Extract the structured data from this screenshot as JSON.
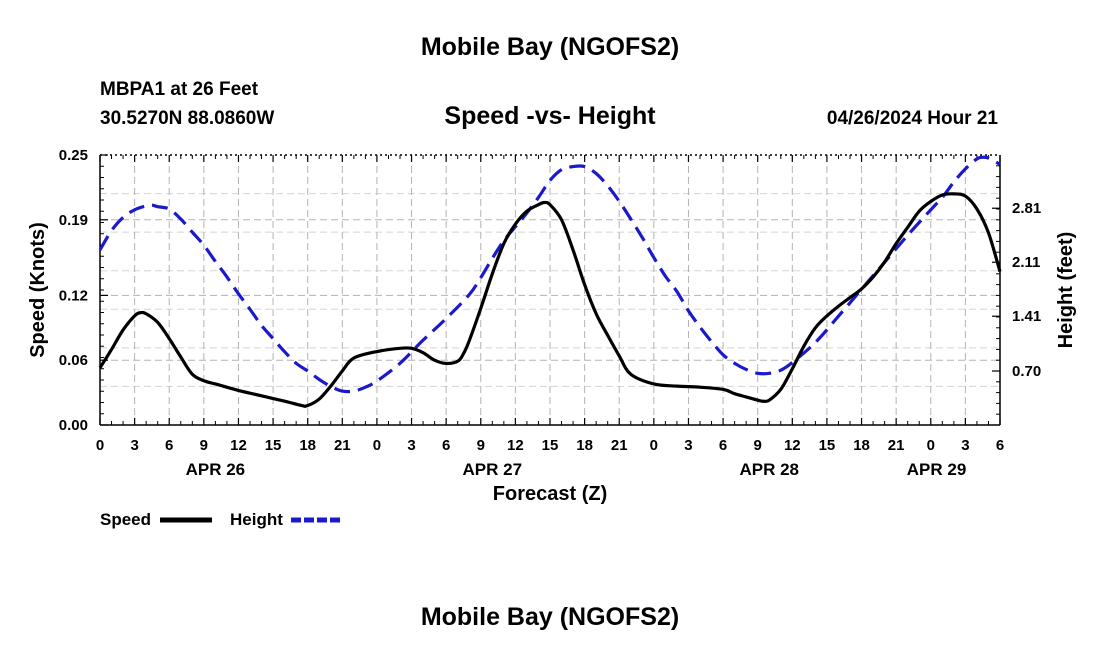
{
  "page_title": "Mobile Bay (NGOFS2)",
  "footer_title": "Mobile Bay (NGOFS2)",
  "station": {
    "name": "MBPA1 at 26 Feet",
    "coords": "30.5270N  88.0860W"
  },
  "timestamp": "04/26/2024 Hour 21",
  "colors": {
    "speed": "#000000",
    "height": "#1a1acc",
    "grid": "#b3b3b3"
  },
  "chart_data": {
    "type": "line",
    "title": "Speed -vs- Height",
    "xlabel": "Forecast (Z)",
    "ylabel_left": "Speed (Knots)",
    "ylabel_right": "Height (feet)",
    "x_unit": "hours since APR 26 00Z",
    "x_range": [
      0,
      78
    ],
    "x_tick_values": [
      0,
      3,
      6,
      9,
      12,
      15,
      18,
      21,
      24,
      27,
      30,
      33,
      36,
      39,
      42,
      45,
      48,
      51,
      54,
      57,
      60,
      63,
      66,
      69,
      72,
      75,
      78
    ],
    "x_tick_labels": [
      "0",
      "3",
      "6",
      "9",
      "12",
      "15",
      "18",
      "21",
      "0",
      "3",
      "6",
      "9",
      "12",
      "15",
      "18",
      "21",
      "0",
      "3",
      "6",
      "9",
      "12",
      "15",
      "18",
      "21",
      "0",
      "3",
      "6"
    ],
    "date_labels": [
      {
        "label": "APR 26",
        "x": 10
      },
      {
        "label": "APR 27",
        "x": 34
      },
      {
        "label": "APR 28",
        "x": 58
      },
      {
        "label": "APR 29",
        "x": 72.5
      }
    ],
    "y_left": {
      "range": [
        0,
        0.25
      ],
      "ticks": [
        0.0,
        0.06,
        0.12,
        0.19,
        0.25
      ],
      "tick_labels": [
        "0.00",
        "0.06",
        "0.12",
        "0.19",
        "0.25"
      ]
    },
    "y_right": {
      "range": [
        0.0,
        3.5
      ],
      "ticks": [
        0.7,
        1.41,
        2.11,
        2.81
      ],
      "tick_labels": [
        "0.70",
        "1.41",
        "2.11",
        "2.81"
      ]
    },
    "series": [
      {
        "name": "Speed",
        "axis": "left",
        "style": "solid",
        "x": [
          0,
          1,
          2,
          3,
          3.5,
          4,
          5,
          6,
          7,
          8,
          9,
          10,
          12,
          14,
          16,
          17.5,
          18,
          19,
          20,
          21,
          22,
          24,
          26,
          27,
          28,
          29,
          30,
          31,
          31.5,
          32,
          33,
          34,
          35,
          36,
          37,
          38,
          38.5,
          39,
          40,
          41,
          42,
          43,
          44,
          45,
          46,
          48,
          50,
          52,
          54,
          55,
          56,
          57,
          57.5,
          58,
          59,
          60,
          61,
          62,
          63,
          64,
          65,
          66,
          67,
          68,
          69,
          70,
          71,
          72,
          73,
          74,
          75,
          76,
          77,
          78
        ],
        "values": [
          0.053,
          0.07,
          0.088,
          0.101,
          0.104,
          0.103,
          0.095,
          0.08,
          0.063,
          0.047,
          0.041,
          0.038,
          0.032,
          0.027,
          0.022,
          0.018,
          0.018,
          0.024,
          0.036,
          0.05,
          0.062,
          0.068,
          0.071,
          0.071,
          0.067,
          0.06,
          0.057,
          0.059,
          0.066,
          0.078,
          0.108,
          0.14,
          0.168,
          0.186,
          0.198,
          0.204,
          0.206,
          0.204,
          0.19,
          0.162,
          0.13,
          0.103,
          0.083,
          0.064,
          0.047,
          0.038,
          0.036,
          0.035,
          0.033,
          0.029,
          0.026,
          0.023,
          0.022,
          0.023,
          0.033,
          0.052,
          0.073,
          0.09,
          0.101,
          0.11,
          0.118,
          0.126,
          0.137,
          0.151,
          0.168,
          0.183,
          0.198,
          0.207,
          0.213,
          0.214,
          0.212,
          0.2,
          0.178,
          0.142
        ]
      },
      {
        "name": "Height",
        "axis": "right",
        "style": "dashed",
        "x": [
          0,
          1,
          2,
          3,
          4,
          4.5,
          5,
          6,
          7,
          8,
          9,
          10,
          11,
          12,
          13,
          14,
          15,
          16,
          17,
          18,
          19,
          20,
          21,
          22,
          23,
          24,
          26,
          28,
          30,
          32,
          33,
          34,
          35,
          36,
          37,
          38,
          39,
          40,
          41,
          42,
          43,
          44,
          45,
          46,
          47,
          48,
          49,
          50,
          51,
          52,
          53,
          54,
          55,
          56,
          57,
          58,
          59,
          60,
          62,
          64,
          66,
          68,
          70,
          72,
          73,
          74,
          75,
          76,
          76.5,
          77,
          78
        ],
        "values": [
          2.27,
          2.52,
          2.69,
          2.79,
          2.84,
          2.85,
          2.83,
          2.8,
          2.67,
          2.5,
          2.33,
          2.12,
          1.92,
          1.7,
          1.5,
          1.29,
          1.12,
          0.95,
          0.8,
          0.7,
          0.59,
          0.5,
          0.44,
          0.44,
          0.49,
          0.57,
          0.8,
          1.1,
          1.38,
          1.69,
          1.91,
          2.16,
          2.39,
          2.57,
          2.75,
          2.95,
          3.17,
          3.31,
          3.35,
          3.35,
          3.26,
          3.1,
          2.9,
          2.67,
          2.43,
          2.17,
          1.93,
          1.73,
          1.48,
          1.27,
          1.08,
          0.91,
          0.8,
          0.72,
          0.67,
          0.67,
          0.71,
          0.81,
          1.07,
          1.41,
          1.76,
          2.11,
          2.46,
          2.79,
          2.95,
          3.15,
          3.32,
          3.45,
          3.47,
          3.46,
          3.38
        ]
      }
    ],
    "legend": [
      {
        "label": "Speed",
        "style": "solid"
      },
      {
        "label": "Height",
        "style": "dashed"
      }
    ]
  }
}
